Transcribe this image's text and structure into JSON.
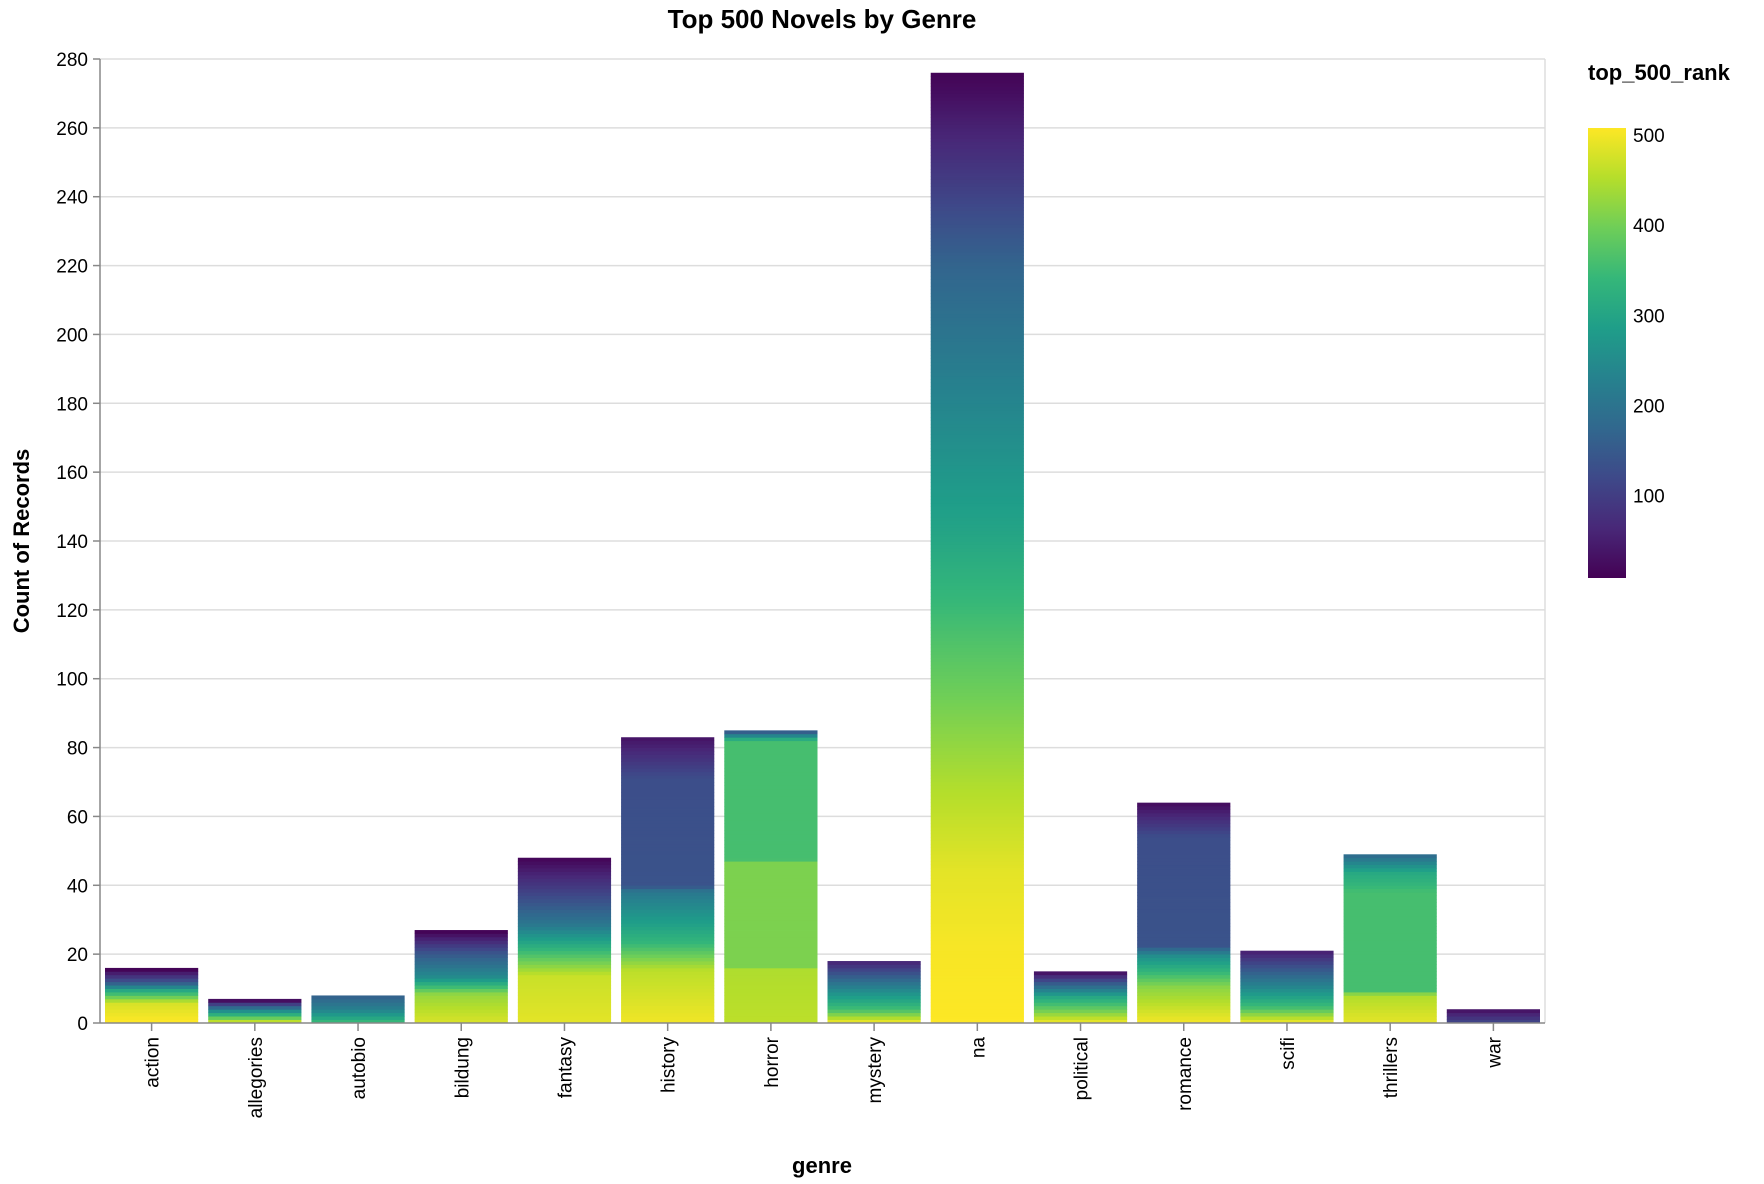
{
  "chart_data": {
    "type": "bar",
    "stacked": true,
    "title": "Top 500 Novels by Genre",
    "xlabel": "genre",
    "ylabel": "Count of Records",
    "ylim": [
      0,
      280
    ],
    "y_ticks": [
      0,
      20,
      40,
      60,
      80,
      100,
      120,
      140,
      160,
      180,
      200,
      220,
      240,
      260,
      280
    ],
    "grid": true,
    "categories": [
      "action",
      "allegories",
      "autobio",
      "bildung",
      "fantasy",
      "history",
      "horror",
      "mystery",
      "na",
      "political",
      "romance",
      "scifi",
      "thrillers",
      "war"
    ],
    "values": [
      16,
      7,
      8,
      27,
      48,
      83,
      85,
      18,
      276,
      15,
      64,
      21,
      49,
      4
    ],
    "color": {
      "field": "top_500_rank",
      "scheme": "viridis",
      "domain": [
        1,
        500
      ],
      "legend_ticks": [
        100,
        200,
        300,
        400,
        500
      ],
      "legend_position": "top-right",
      "stops": [
        "#440154",
        "#482878",
        "#3e4989",
        "#31688e",
        "#26828e",
        "#1f9e89",
        "#35b779",
        "#6ece58",
        "#b5de2b",
        "#fde725"
      ]
    },
    "rank_profiles": [
      [
        [
          0,
          500
        ],
        [
          0.35,
          470
        ],
        [
          0.6,
          300
        ],
        [
          0.75,
          140
        ],
        [
          1,
          5
        ]
      ],
      [
        [
          0,
          450
        ],
        [
          0.5,
          250
        ],
        [
          1,
          20
        ]
      ],
      [
        [
          0,
          330
        ],
        [
          0.5,
          220
        ],
        [
          1,
          160
        ]
      ],
      [
        [
          0,
          470
        ],
        [
          0.3,
          420
        ],
        [
          0.5,
          240
        ],
        [
          0.75,
          140
        ],
        [
          1,
          5
        ]
      ],
      [
        [
          0,
          480
        ],
        [
          0.28,
          460
        ],
        [
          0.42,
          350
        ],
        [
          0.6,
          200
        ],
        [
          0.8,
          100
        ],
        [
          1,
          10
        ]
      ],
      [
        [
          0,
          490
        ],
        [
          0.18,
          450
        ],
        [
          0.28,
          330
        ],
        [
          0.46,
          200
        ],
        [
          0.48,
          130
        ],
        [
          0.86,
          120
        ],
        [
          1,
          30
        ]
      ],
      [
        [
          0,
          450
        ],
        [
          0.18,
          440
        ],
        [
          0.19,
          400
        ],
        [
          0.55,
          400
        ],
        [
          0.56,
          350
        ],
        [
          0.97,
          350
        ],
        [
          1,
          150
        ]
      ],
      [
        [
          0,
          480
        ],
        [
          0.2,
          350
        ],
        [
          0.5,
          250
        ],
        [
          1,
          60
        ]
      ],
      [
        [
          0,
          500
        ],
        [
          0.08,
          495
        ],
        [
          0.16,
          480
        ],
        [
          0.25,
          440
        ],
        [
          0.4,
          360
        ],
        [
          0.52,
          290
        ],
        [
          0.65,
          230
        ],
        [
          0.8,
          160
        ],
        [
          0.9,
          80
        ],
        [
          1,
          5
        ]
      ],
      [
        [
          0,
          480
        ],
        [
          0.2,
          400
        ],
        [
          0.5,
          300
        ],
        [
          1,
          30
        ]
      ],
      [
        [
          0,
          490
        ],
        [
          0.16,
          410
        ],
        [
          0.3,
          250
        ],
        [
          0.35,
          130
        ],
        [
          0.85,
          120
        ],
        [
          1,
          20
        ]
      ],
      [
        [
          0,
          480
        ],
        [
          0.2,
          350
        ],
        [
          0.5,
          230
        ],
        [
          1,
          50
        ]
      ],
      [
        [
          0,
          480
        ],
        [
          0.16,
          440
        ],
        [
          0.18,
          350
        ],
        [
          0.78,
          350
        ],
        [
          0.9,
          300
        ],
        [
          1,
          180
        ]
      ],
      [
        [
          0,
          100
        ],
        [
          1,
          30
        ]
      ]
    ]
  }
}
